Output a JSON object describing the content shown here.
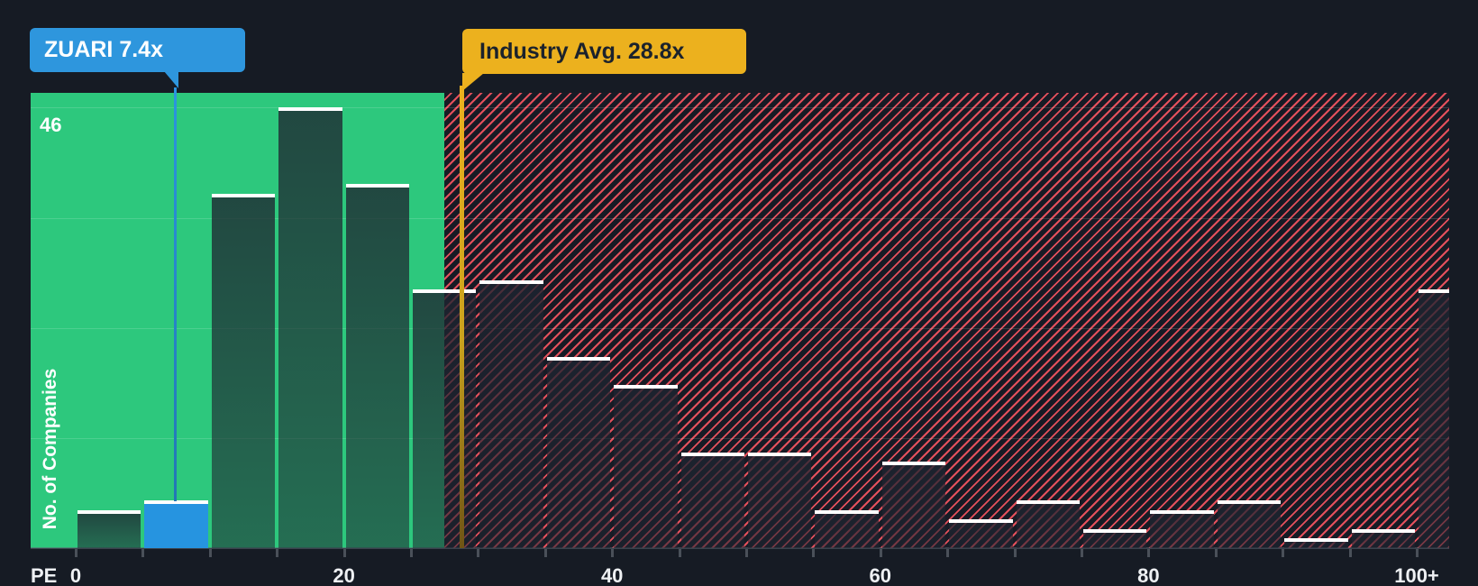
{
  "chart_data": {
    "type": "bar",
    "subtype": "histogram",
    "title": "",
    "xlabel": "PE",
    "ylabel": "No. of Companies",
    "categories": [
      "0-5",
      "5-10",
      "10-15",
      "15-20",
      "20-25",
      "25-30",
      "30-35",
      "35-40",
      "40-45",
      "45-50",
      "50-55",
      "55-60",
      "60-65",
      "65-70",
      "70-75",
      "75-80",
      "80-85",
      "85-90",
      "90-95",
      "95-100",
      "100+"
    ],
    "values": [
      4,
      5,
      37,
      46,
      38,
      27,
      28,
      20,
      17,
      10,
      10,
      4,
      9,
      3,
      5,
      2,
      4,
      5,
      1,
      2,
      27
    ],
    "bin_width_pe": 5,
    "x_axis": {
      "label": "PE",
      "tick_labels": [
        "0",
        "20",
        "40",
        "60",
        "80",
        "100+"
      ],
      "tick_positions_pe": [
        0,
        20,
        40,
        60,
        80,
        100
      ],
      "minor_tick_every_pe": 5
    },
    "y_axis": {
      "label": "No. of Companies",
      "max_value": 46,
      "max_value_label": "46",
      "gridline_values": [
        46,
        34.5,
        23,
        11.5
      ]
    },
    "highlight_bin_index": 1,
    "markers": [
      {
        "name": "company",
        "label": "ZUARI 7.4x",
        "value_pe": 7.4,
        "color": "#2e96dd"
      },
      {
        "name": "industry_avg",
        "label": "Industry Avg. 28.8x",
        "value_pe": 28.8,
        "color": "#ecb11e"
      }
    ],
    "zones": [
      {
        "name": "below-industry-average",
        "style": "solid-green",
        "color": "#2dc87d",
        "to_pe": 27.5
      },
      {
        "name": "above-industry-average",
        "style": "red-hatch",
        "color": "#e4505c",
        "from_pe": 27.5
      }
    ],
    "legend": "none",
    "grid": "horizontal-faint"
  },
  "colors": {
    "background": "#161b24",
    "green_zone": "#2dc87d",
    "hatch_red": "#e4505c",
    "hatch_background": "#171b25",
    "bar_cap": "#ffffff",
    "highlight_blue": "#2694e0",
    "company_callout": "#2e96dd",
    "industry_callout": "#ecb11e",
    "axis_text": "#eef0f3"
  }
}
